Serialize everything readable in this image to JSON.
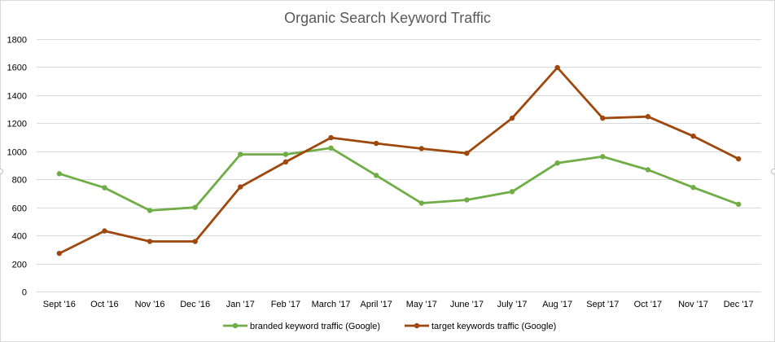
{
  "chart_data": {
    "type": "line",
    "title": "Organic Search Keyword Traffic",
    "xlabel": "",
    "ylabel": "",
    "ylim": [
      0,
      1800
    ],
    "yticks": [
      0,
      200,
      400,
      600,
      800,
      1000,
      1200,
      1400,
      1600,
      1800
    ],
    "grid": true,
    "legend_position": "bottom",
    "categories": [
      "Sept '16",
      "Oct '16",
      "Nov '16",
      "Dec '16",
      "Jan '17",
      "Feb '17",
      "March '17",
      "April '17",
      "May '17",
      "June '17",
      "July '17",
      "Aug '17",
      "Sept '17",
      "Oct '17",
      "Nov '17",
      "Dec '17"
    ],
    "series": [
      {
        "name": "branded keyword traffic (Google)",
        "color": "#70ad47",
        "values": [
          840,
          740,
          578,
          600,
          978,
          978,
          1023,
          828,
          630,
          653,
          712,
          916,
          962,
          868,
          742,
          622
        ]
      },
      {
        "name": "target keywords traffic (Google)",
        "color": "#9e480e",
        "values": [
          272,
          432,
          357,
          357,
          746,
          924,
          1097,
          1056,
          1019,
          986,
          1236,
          1597,
          1236,
          1247,
          1108,
          946
        ]
      }
    ]
  }
}
